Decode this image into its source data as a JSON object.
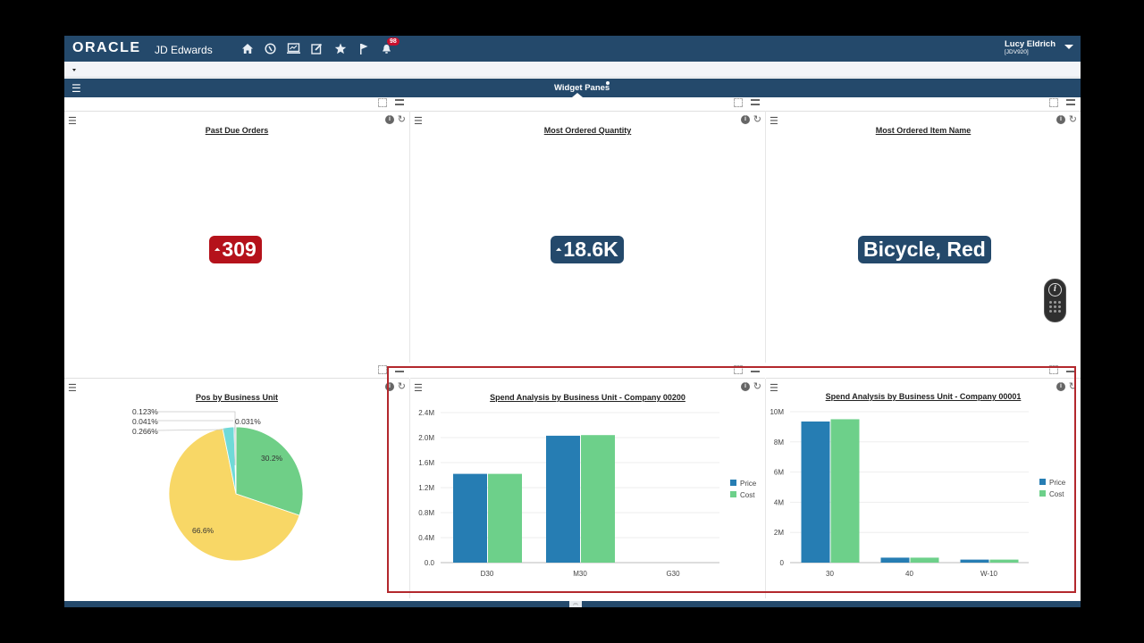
{
  "header": {
    "logo": "ORACLE",
    "product": "JD Edwards",
    "nav_icons": [
      "home-icon",
      "compass-icon",
      "monitor-chart-icon",
      "edit-icon",
      "star-icon",
      "flag-icon",
      "bell-icon"
    ],
    "notification_count": "98",
    "user_name": "Lucy Eldrich",
    "user_env": "[JDV920]"
  },
  "panes_bar": {
    "title": "Widget Panes"
  },
  "widgets": {
    "past_due": {
      "title": "Past Due Orders",
      "value": "309",
      "color": "#b5121b"
    },
    "most_qty": {
      "title": "Most Ordered Quantity",
      "value": "18.6K",
      "color": "#24496b"
    },
    "most_item": {
      "title": "Most Ordered Item Name",
      "value": "Bicycle, Red",
      "color": "#24496b"
    },
    "pos_bu": {
      "title": "Pos by Business Unit"
    },
    "spend_200": {
      "title": "Spend Analysis by Business Unit - Company 00200"
    },
    "spend_001": {
      "title": "Spend Analysis by Business Unit - Company 00001"
    }
  },
  "chart_data": [
    {
      "type": "pie",
      "title": "Pos by Business Unit",
      "slices": [
        {
          "label": "30.2%",
          "value": 30.2,
          "color": "#6fcf87"
        },
        {
          "label": "66.6%",
          "value": 66.6,
          "color": "#f8d766"
        },
        {
          "label": "",
          "value": 2.74,
          "color": "#6fdad8"
        },
        {
          "label": "0.266%",
          "value": 0.266,
          "color": "#8fa8c8"
        },
        {
          "label": "0.041%",
          "value": 0.041,
          "color": "#c46a6a"
        },
        {
          "label": "0.123%",
          "value": 0.123,
          "color": "#a58bd1"
        },
        {
          "label": "0.031%",
          "value": 0.031,
          "color": "#cccccc"
        }
      ]
    },
    {
      "type": "bar",
      "title": "Spend Analysis by Business Unit - Company 00200",
      "categories": [
        "D30",
        "M30",
        "G30"
      ],
      "series": [
        {
          "name": "Price",
          "color": "#267db3",
          "values": [
            1420000,
            2030000,
            0
          ]
        },
        {
          "name": "Cost",
          "color": "#6dd08a",
          "values": [
            1420000,
            2040000,
            0
          ]
        }
      ],
      "yticks": [
        "0.0",
        "0.4M",
        "0.8M",
        "1.2M",
        "1.6M",
        "2.0M",
        "2.4M"
      ],
      "ylim": [
        0,
        2400000
      ],
      "legend_position": "right",
      "grid": true
    },
    {
      "type": "bar",
      "title": "Spend Analysis by Business Unit - Company 00001",
      "categories": [
        "30",
        "40",
        "W-10"
      ],
      "series": [
        {
          "name": "Price",
          "color": "#267db3",
          "values": [
            9350000,
            330000,
            200000
          ]
        },
        {
          "name": "Cost",
          "color": "#6dd08a",
          "values": [
            9500000,
            330000,
            200000
          ]
        }
      ],
      "yticks": [
        "0",
        "2M",
        "4M",
        "6M",
        "8M",
        "10M"
      ],
      "ylim": [
        0,
        10000000
      ],
      "legend_position": "right",
      "grid": true
    }
  ]
}
